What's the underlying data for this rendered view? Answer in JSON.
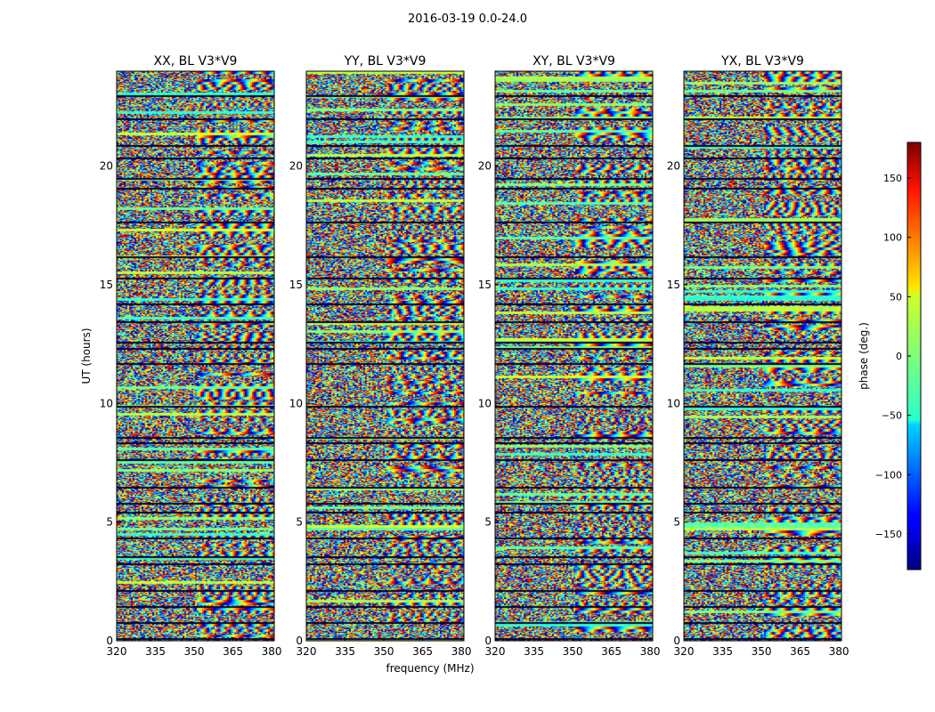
{
  "figure": {
    "suptitle": "2016-03-19 0.0-24.0",
    "xlabel": "frequency (MHz)",
    "ylabel": "UT (hours)"
  },
  "chart_data": {
    "type": "heatmap",
    "colormap": "jet",
    "x_range": [
      320,
      381
    ],
    "y_range": [
      0,
      24
    ],
    "xticks": [
      "320",
      "335",
      "350",
      "365",
      "380"
    ],
    "xtick_values": [
      320,
      335,
      350,
      365,
      380
    ],
    "yticks": [
      "0",
      "5",
      "10",
      "15",
      "20"
    ],
    "ytick_values": [
      0,
      5,
      10,
      15,
      20
    ],
    "panels": [
      {
        "title": "XX, BL V3*V9",
        "pol": "XX"
      },
      {
        "title": "YY, BL V3*V9",
        "pol": "YY"
      },
      {
        "title": "XY, BL V3*V9",
        "pol": "XY"
      },
      {
        "title": "YX, BL V3*V9",
        "pol": "YX"
      }
    ],
    "colorbar": {
      "label": "phase (deg.)",
      "range": [
        -180,
        180
      ],
      "ticks": [
        "150",
        "100",
        "50",
        "0",
        "−50",
        "−100",
        "−150"
      ],
      "tick_values": [
        150,
        100,
        50,
        0,
        -50,
        -100,
        -150
      ]
    },
    "flagged_gaps_ut": [
      0.12,
      0.78,
      1.45,
      2.15,
      3.28,
      3.55,
      4.35,
      5.45,
      5.8,
      6.5,
      7.65,
      8.35,
      8.6,
      9.9,
      11.7,
      12.35,
      12.6,
      13.45,
      14.2,
      15.3,
      16.2,
      17.65,
      19.1,
      19.5,
      20.35,
      20.9,
      22.0,
      23.0
    ]
  }
}
